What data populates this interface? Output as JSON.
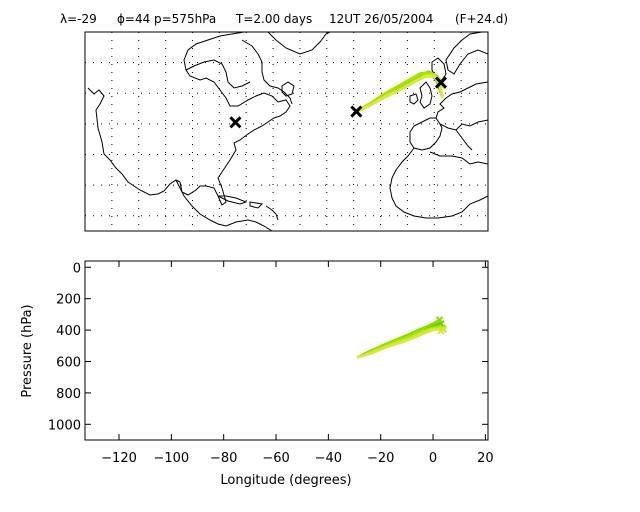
{
  "header": {
    "parts": [
      "λ=-29",
      "ϕ=44",
      "p=575hPa",
      "T=2.00 days",
      "12UT 26/05/2004",
      "(F+24.d)"
    ]
  },
  "map_panel": {
    "lon_range": [
      -130,
      20
    ],
    "lat_range": [
      5,
      70
    ],
    "grid": "dotted",
    "markers": [
      {
        "symbol": "x",
        "lon": -74,
        "lat": 40.5
      },
      {
        "symbol": "x",
        "lon": -29,
        "lat": 44
      },
      {
        "symbol": "x",
        "lon": 2.5,
        "lat": 53.5
      }
    ],
    "colors": {
      "trajectories": [
        "#66cc00",
        "#99e600",
        "#cfee33",
        "#e3e84a"
      ],
      "coast": "#000000"
    }
  },
  "chart_data": {
    "type": "line",
    "xlabel": "Longitude  (degrees)",
    "ylabel": "Pressure  (hPa)",
    "xlim": [
      -133,
      21
    ],
    "ylim": [
      1100,
      -40
    ],
    "xticks": [
      -120,
      -100,
      -80,
      -60,
      -40,
      -20,
      0,
      20
    ],
    "yticks": [
      0,
      200,
      400,
      600,
      800,
      1000
    ],
    "xtick_labels": [
      "−120",
      "−100",
      "−80",
      "−60",
      "−40",
      "−20",
      "0",
      "20"
    ],
    "ytick_labels": [
      "0",
      "200",
      "400",
      "600",
      "800",
      "1000"
    ],
    "series": [
      {
        "color": "#66cc00",
        "lon": [
          -29,
          -25,
          -20,
          -15,
          -10,
          -5,
          -1,
          1,
          3
        ],
        "lat": [
          44,
          46,
          48.5,
          51,
          53.5,
          55.5,
          56,
          54,
          49
        ],
        "pressure": [
          575,
          540,
          505,
          470,
          440,
          405,
          380,
          365,
          360
        ]
      },
      {
        "color": "#88dd00",
        "lon": [
          -29,
          -24,
          -19,
          -14,
          -9,
          -5,
          -2,
          1,
          2.5
        ],
        "lat": [
          44,
          46.5,
          49,
          51.5,
          54,
          56,
          57,
          55.5,
          53.5
        ],
        "pressure": [
          575,
          535,
          495,
          460,
          425,
          395,
          375,
          350,
          335
        ]
      },
      {
        "color": "#a6e400",
        "lon": [
          -29,
          -24,
          -19,
          -14,
          -9,
          -5,
          -1,
          1.5,
          3.5
        ],
        "lat": [
          44,
          46.5,
          49.5,
          52,
          54.5,
          56.5,
          56.5,
          55,
          52
        ],
        "pressure": [
          575,
          540,
          505,
          470,
          440,
          410,
          390,
          380,
          385
        ]
      },
      {
        "color": "#c2ea1e",
        "lon": [
          -29,
          -24,
          -19,
          -13,
          -8,
          -4,
          -1,
          2,
          4
        ],
        "lat": [
          44,
          46,
          48.5,
          51,
          53.5,
          55.5,
          56,
          54.5,
          51.5
        ],
        "pressure": [
          575,
          545,
          510,
          475,
          445,
          415,
          395,
          390,
          395
        ]
      },
      {
        "color": "#dce640",
        "lon": [
          -29,
          -23,
          -18,
          -12,
          -7,
          -3,
          0,
          2,
          3
        ],
        "lat": [
          44,
          46.5,
          49,
          51.5,
          54,
          55.5,
          55.5,
          53,
          48.5
        ],
        "pressure": [
          575,
          545,
          510,
          478,
          448,
          418,
          400,
          395,
          405
        ]
      }
    ]
  }
}
